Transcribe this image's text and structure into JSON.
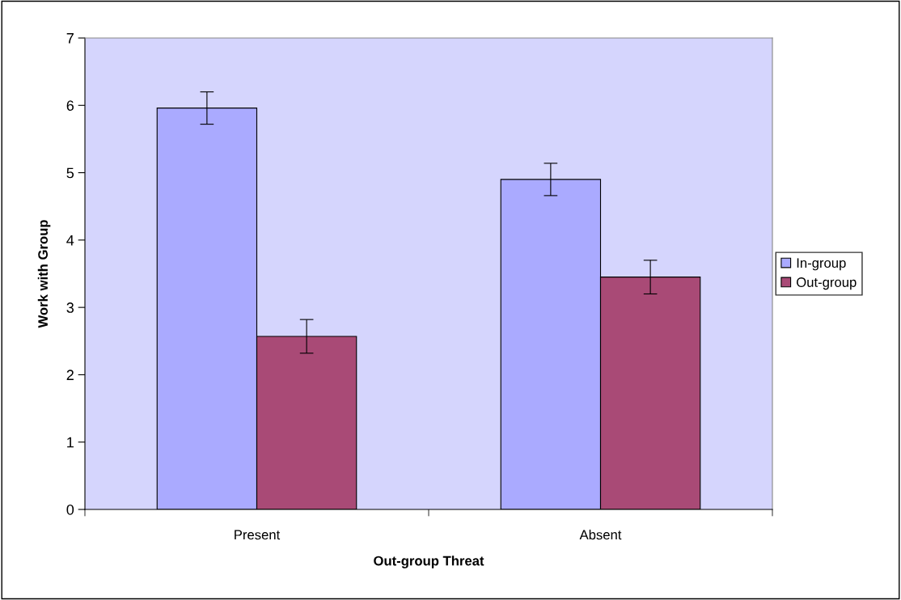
{
  "chart_data": {
    "type": "bar",
    "xlabel": "Out-group Threat",
    "ylabel": "Work with Group",
    "categories": [
      "Present",
      "Absent"
    ],
    "series": [
      {
        "name": "In-group",
        "color": "#aaaaff",
        "values": [
          5.96,
          4.9
        ],
        "errors": [
          0.24,
          0.24
        ]
      },
      {
        "name": "Out-group",
        "color": "#a94a76",
        "values": [
          2.57,
          3.45
        ],
        "errors": [
          0.25,
          0.25
        ]
      }
    ],
    "ylim": [
      0,
      7
    ],
    "yticks": [
      0,
      1,
      2,
      3,
      4,
      5,
      6,
      7
    ],
    "grid": false,
    "legend": "right"
  }
}
